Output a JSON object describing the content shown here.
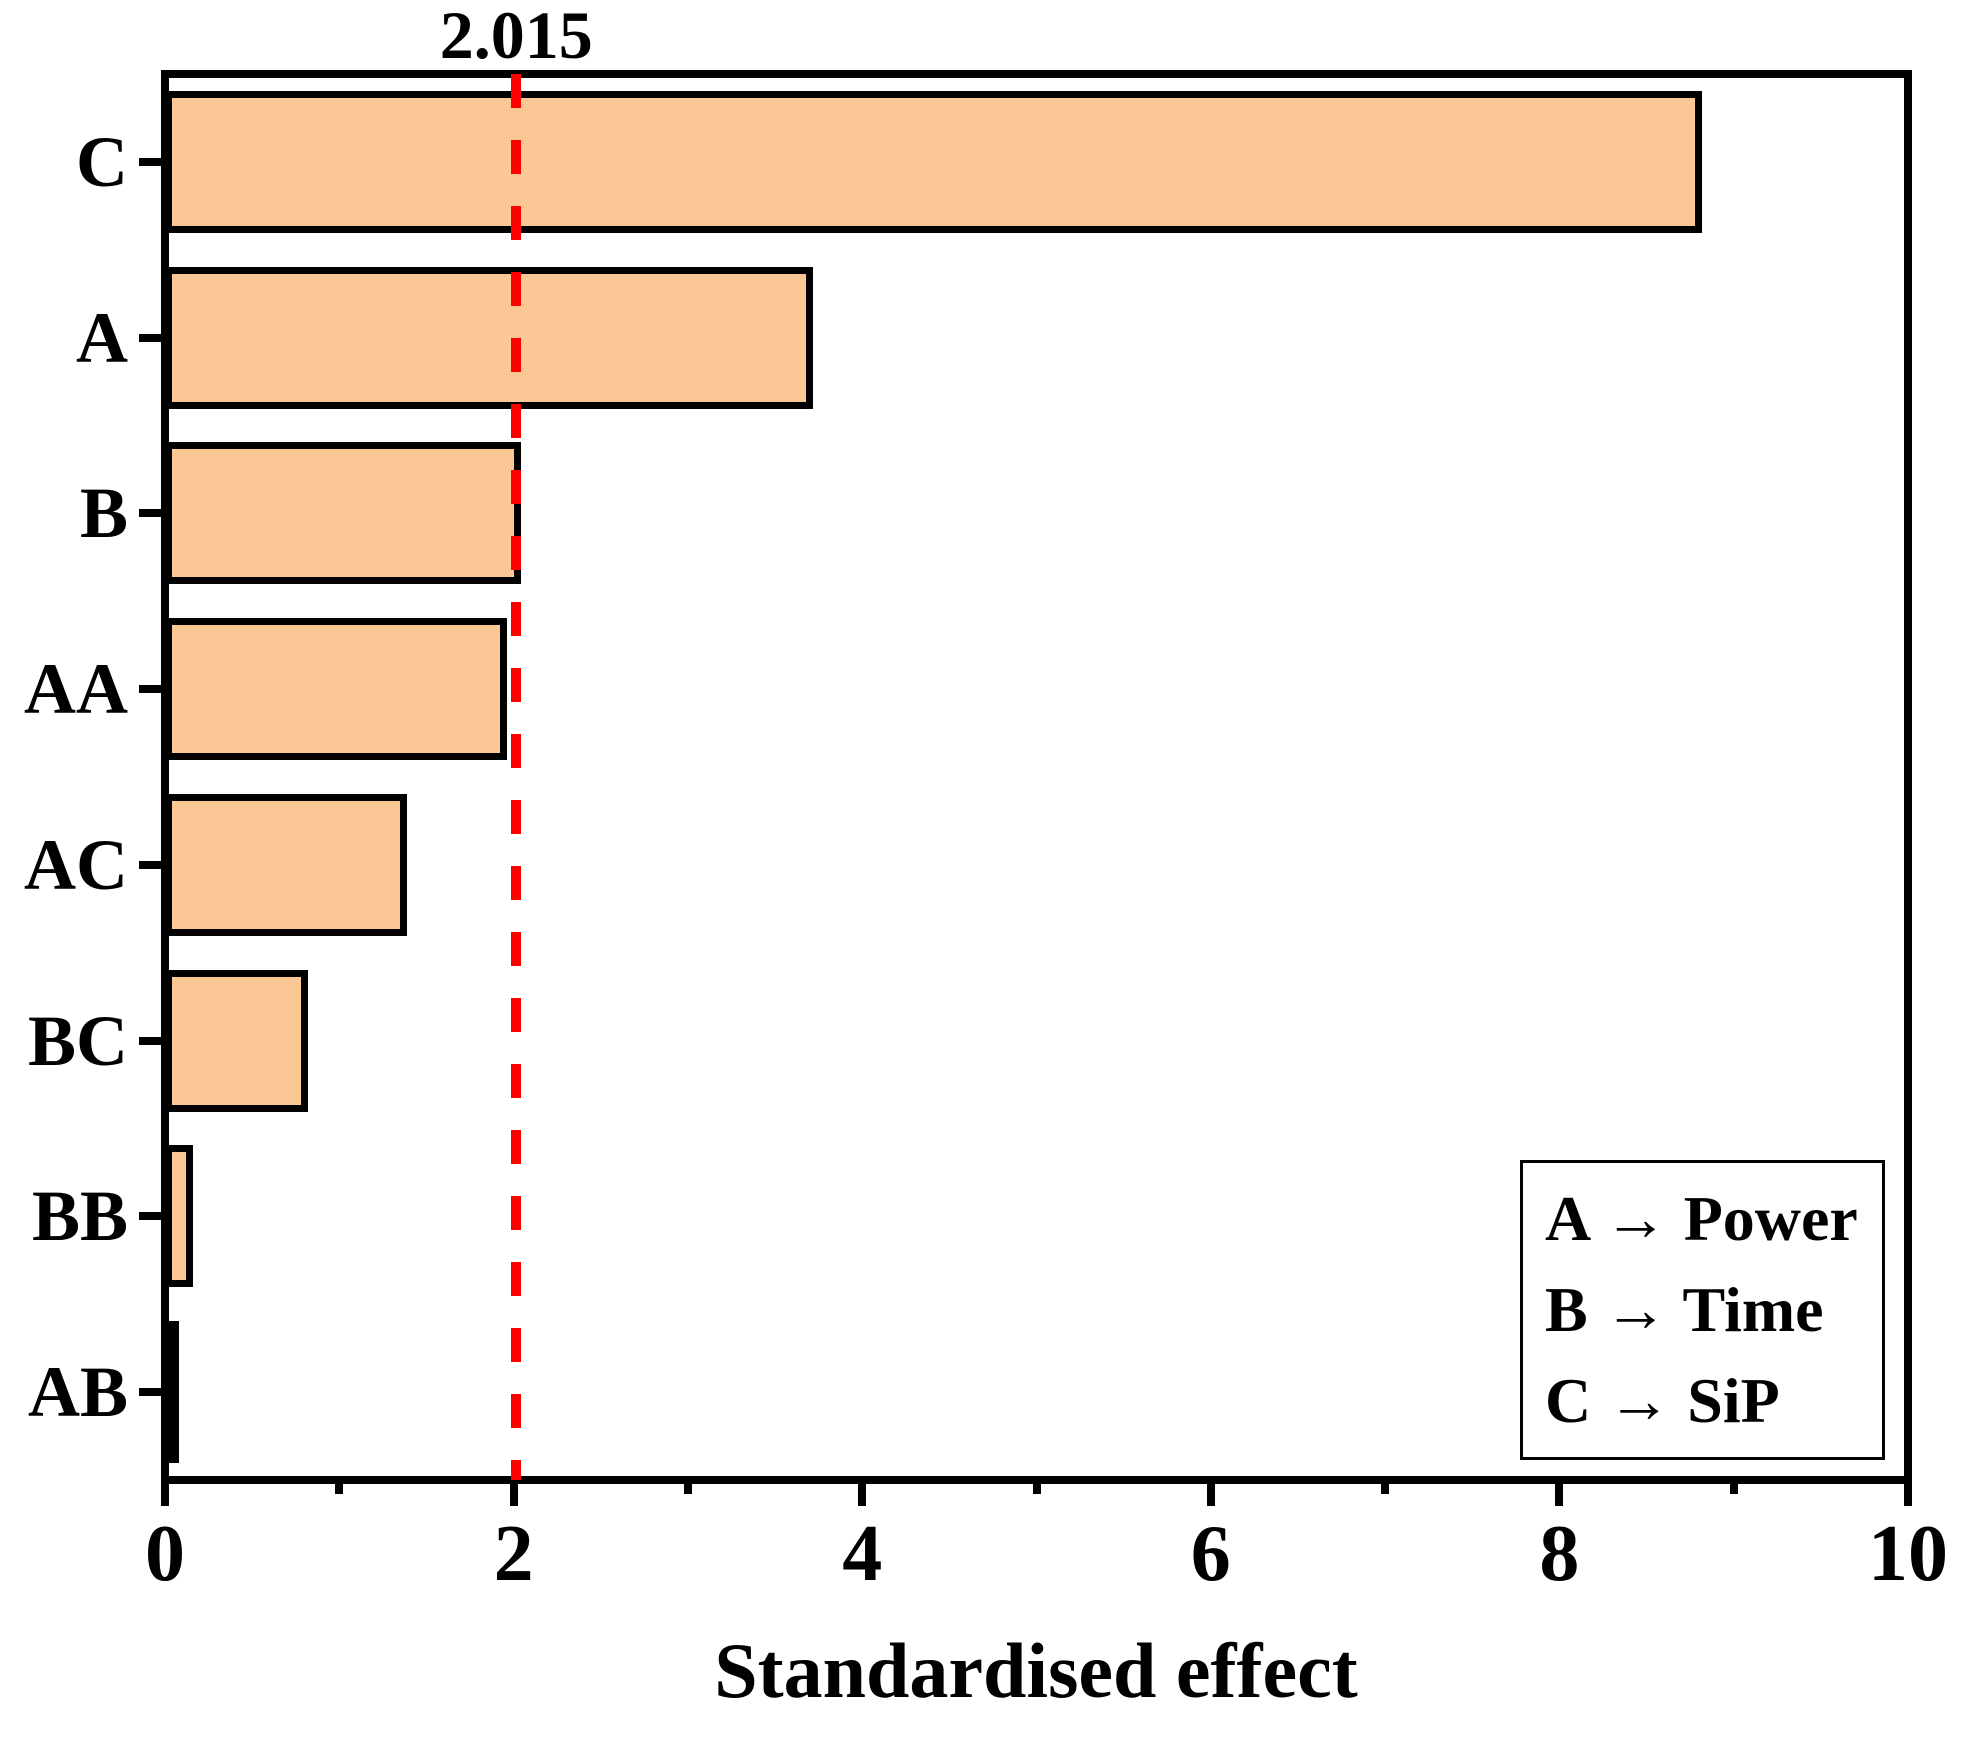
{
  "colors": {
    "bar_fill": "#FBC794",
    "bar_border": "#000000",
    "reference_line": "#FF0000",
    "axis": "#000000",
    "background": "#FFFFFF"
  },
  "chart_data": {
    "type": "bar",
    "orientation": "horizontal",
    "title": "",
    "categories": [
      "C",
      "A",
      "B",
      "AA",
      "AC",
      "BC",
      "BB",
      "AB"
    ],
    "values": [
      8.82,
      3.72,
      2.04,
      1.96,
      1.39,
      0.82,
      0.16,
      0.03
    ],
    "xlabel": "Standardised effect",
    "ylabel": "",
    "xlim": [
      0,
      10
    ],
    "x_major_ticks": [
      0,
      2,
      4,
      6,
      8,
      10
    ],
    "x_minor_ticks": [
      1,
      3,
      5,
      7,
      9
    ],
    "grid": false,
    "reference_line": {
      "value": 2.015,
      "label": "2.015",
      "style": "dashed",
      "color": "#FF0000"
    },
    "legend_lines": [
      "A → Power",
      "B → Time",
      "C → SiP"
    ],
    "legend_position": "bottom-right"
  }
}
